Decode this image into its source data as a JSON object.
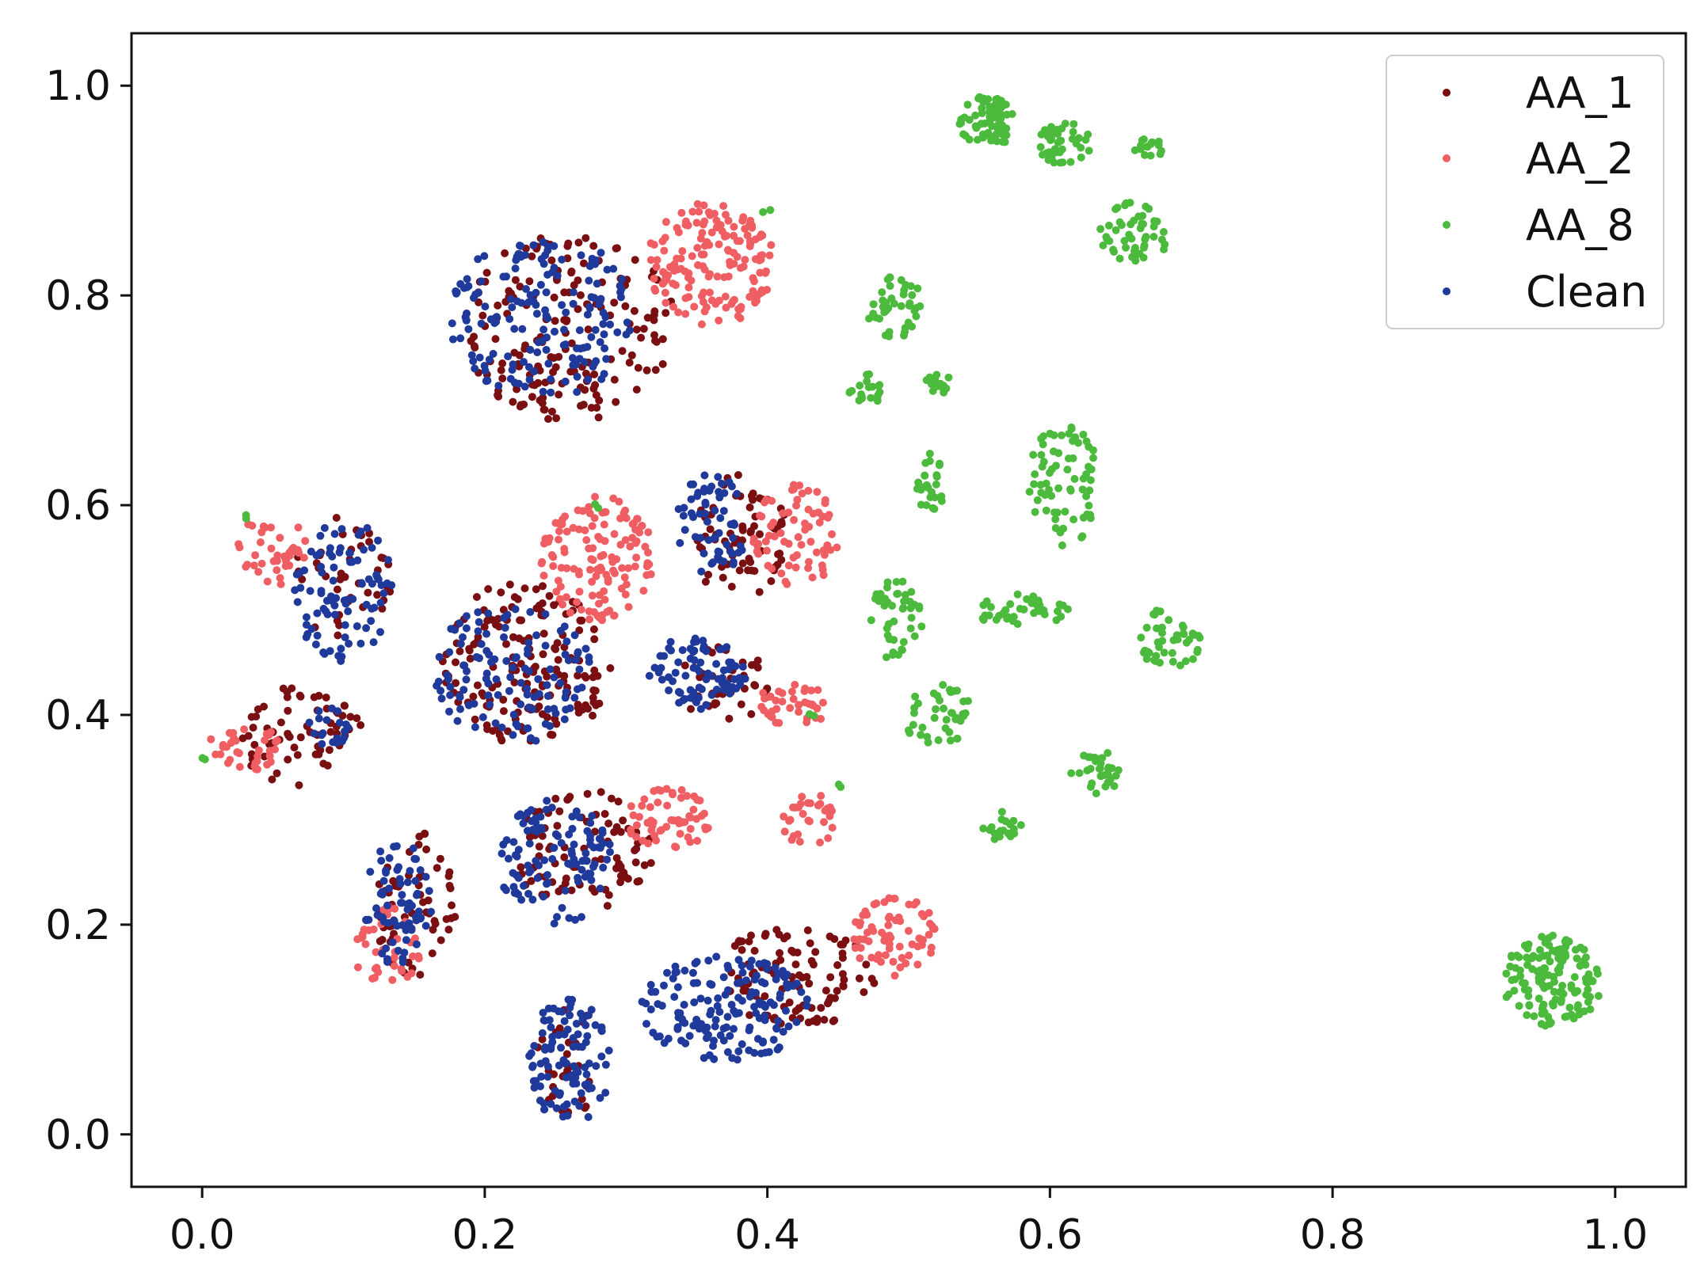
{
  "chart_data": {
    "type": "scatter",
    "title": "",
    "xlabel": "",
    "ylabel": "",
    "xlim": [
      -0.05,
      1.05
    ],
    "ylim": [
      -0.05,
      1.05
    ],
    "grid": false,
    "legend_position": "top-right",
    "x_ticks": [
      0.0,
      0.2,
      0.4,
      0.6,
      0.8,
      1.0
    ],
    "y_ticks": [
      0.0,
      0.2,
      0.4,
      0.6,
      0.8,
      1.0
    ],
    "x_tick_labels": [
      "0.0",
      "0.2",
      "0.4",
      "0.6",
      "0.8",
      "1.0"
    ],
    "y_tick_labels": [
      "0.0",
      "0.2",
      "0.4",
      "0.6",
      "0.8",
      "1.0"
    ],
    "series": [
      {
        "name": "AA_1",
        "color": "#7a0f12",
        "clusters": [
          {
            "cx": 0.26,
            "cy": 0.77,
            "rx": 0.075,
            "ry": 0.09,
            "n": 180
          },
          {
            "cx": 0.23,
            "cy": 0.45,
            "rx": 0.06,
            "ry": 0.08,
            "n": 170
          },
          {
            "cx": 0.07,
            "cy": 0.38,
            "rx": 0.045,
            "ry": 0.05,
            "n": 70
          },
          {
            "cx": 0.15,
            "cy": 0.22,
            "rx": 0.03,
            "ry": 0.07,
            "n": 60
          },
          {
            "cx": 0.27,
            "cy": 0.27,
            "rx": 0.05,
            "ry": 0.06,
            "n": 90
          },
          {
            "cx": 0.38,
            "cy": 0.57,
            "rx": 0.035,
            "ry": 0.06,
            "n": 70
          },
          {
            "cx": 0.37,
            "cy": 0.43,
            "rx": 0.035,
            "ry": 0.035,
            "n": 40
          },
          {
            "cx": 0.42,
            "cy": 0.15,
            "rx": 0.06,
            "ry": 0.05,
            "n": 100
          },
          {
            "cx": 0.26,
            "cy": 0.07,
            "rx": 0.025,
            "ry": 0.05,
            "n": 30
          },
          {
            "cx": 0.1,
            "cy": 0.53,
            "rx": 0.035,
            "ry": 0.06,
            "n": 40
          }
        ]
      },
      {
        "name": "AA_2",
        "color": "#ef5e62",
        "clusters": [
          {
            "cx": 0.36,
            "cy": 0.83,
            "rx": 0.045,
            "ry": 0.06,
            "n": 160
          },
          {
            "cx": 0.28,
            "cy": 0.55,
            "rx": 0.04,
            "ry": 0.06,
            "n": 130
          },
          {
            "cx": 0.42,
            "cy": 0.57,
            "rx": 0.03,
            "ry": 0.05,
            "n": 70
          },
          {
            "cx": 0.05,
            "cy": 0.56,
            "rx": 0.025,
            "ry": 0.04,
            "n": 40
          },
          {
            "cx": 0.03,
            "cy": 0.37,
            "rx": 0.025,
            "ry": 0.025,
            "n": 35
          },
          {
            "cx": 0.13,
            "cy": 0.18,
            "rx": 0.025,
            "ry": 0.04,
            "n": 40
          },
          {
            "cx": 0.33,
            "cy": 0.3,
            "rx": 0.03,
            "ry": 0.03,
            "n": 60
          },
          {
            "cx": 0.42,
            "cy": 0.41,
            "rx": 0.03,
            "ry": 0.02,
            "n": 40
          },
          {
            "cx": 0.43,
            "cy": 0.3,
            "rx": 0.02,
            "ry": 0.025,
            "n": 30
          },
          {
            "cx": 0.49,
            "cy": 0.19,
            "rx": 0.03,
            "ry": 0.04,
            "n": 70
          }
        ]
      },
      {
        "name": "AA_8",
        "color": "#4cba3c",
        "clusters": [
          {
            "cx": 0.555,
            "cy": 0.965,
            "rx": 0.02,
            "ry": 0.025,
            "n": 70
          },
          {
            "cx": 0.61,
            "cy": 0.945,
            "rx": 0.02,
            "ry": 0.02,
            "n": 40
          },
          {
            "cx": 0.67,
            "cy": 0.94,
            "rx": 0.01,
            "ry": 0.01,
            "n": 15
          },
          {
            "cx": 0.66,
            "cy": 0.86,
            "rx": 0.025,
            "ry": 0.03,
            "n": 50
          },
          {
            "cx": 0.49,
            "cy": 0.79,
            "rx": 0.02,
            "ry": 0.03,
            "n": 40
          },
          {
            "cx": 0.47,
            "cy": 0.71,
            "rx": 0.012,
            "ry": 0.015,
            "n": 20
          },
          {
            "cx": 0.52,
            "cy": 0.715,
            "rx": 0.012,
            "ry": 0.01,
            "n": 15
          },
          {
            "cx": 0.515,
            "cy": 0.62,
            "rx": 0.01,
            "ry": 0.03,
            "n": 25
          },
          {
            "cx": 0.61,
            "cy": 0.62,
            "rx": 0.025,
            "ry": 0.06,
            "n": 70
          },
          {
            "cx": 0.49,
            "cy": 0.49,
            "rx": 0.02,
            "ry": 0.04,
            "n": 45
          },
          {
            "cx": 0.58,
            "cy": 0.5,
            "rx": 0.035,
            "ry": 0.015,
            "n": 40
          },
          {
            "cx": 0.685,
            "cy": 0.475,
            "rx": 0.025,
            "ry": 0.03,
            "n": 45
          },
          {
            "cx": 0.52,
            "cy": 0.4,
            "rx": 0.025,
            "ry": 0.03,
            "n": 40
          },
          {
            "cx": 0.635,
            "cy": 0.345,
            "rx": 0.02,
            "ry": 0.02,
            "n": 30
          },
          {
            "cx": 0.565,
            "cy": 0.295,
            "rx": 0.015,
            "ry": 0.015,
            "n": 20
          },
          {
            "cx": 0.955,
            "cy": 0.145,
            "rx": 0.035,
            "ry": 0.045,
            "n": 140
          },
          {
            "cx": 0.03,
            "cy": 0.59,
            "rx": 0.004,
            "ry": 0.004,
            "n": 2
          },
          {
            "cx": 0.4,
            "cy": 0.88,
            "rx": 0.004,
            "ry": 0.004,
            "n": 2
          },
          {
            "cx": 0.28,
            "cy": 0.6,
            "rx": 0.004,
            "ry": 0.004,
            "n": 2
          },
          {
            "cx": 0.45,
            "cy": 0.33,
            "rx": 0.004,
            "ry": 0.004,
            "n": 2
          },
          {
            "cx": 0.43,
            "cy": 0.4,
            "rx": 0.004,
            "ry": 0.004,
            "n": 2
          },
          {
            "cx": 0.0,
            "cy": 0.36,
            "rx": 0.004,
            "ry": 0.004,
            "n": 2
          }
        ]
      },
      {
        "name": "Clean",
        "color": "#1f3a9a",
        "clusters": [
          {
            "cx": 0.24,
            "cy": 0.78,
            "rx": 0.065,
            "ry": 0.08,
            "n": 170
          },
          {
            "cx": 0.22,
            "cy": 0.44,
            "rx": 0.055,
            "ry": 0.07,
            "n": 120
          },
          {
            "cx": 0.1,
            "cy": 0.52,
            "rx": 0.035,
            "ry": 0.07,
            "n": 90
          },
          {
            "cx": 0.09,
            "cy": 0.39,
            "rx": 0.015,
            "ry": 0.02,
            "n": 20
          },
          {
            "cx": 0.14,
            "cy": 0.22,
            "rx": 0.025,
            "ry": 0.06,
            "n": 70
          },
          {
            "cx": 0.25,
            "cy": 0.26,
            "rx": 0.04,
            "ry": 0.06,
            "n": 110
          },
          {
            "cx": 0.36,
            "cy": 0.58,
            "rx": 0.025,
            "ry": 0.05,
            "n": 60
          },
          {
            "cx": 0.35,
            "cy": 0.44,
            "rx": 0.035,
            "ry": 0.035,
            "n": 80
          },
          {
            "cx": 0.37,
            "cy": 0.12,
            "rx": 0.06,
            "ry": 0.05,
            "n": 160
          },
          {
            "cx": 0.26,
            "cy": 0.07,
            "rx": 0.03,
            "ry": 0.06,
            "n": 100
          }
        ]
      }
    ]
  }
}
